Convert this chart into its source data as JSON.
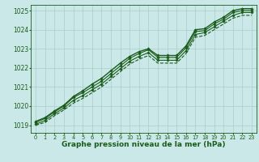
{
  "background_color": "#cbe8e8",
  "grid_color": "#aacccc",
  "line_color": "#1a5c1a",
  "marker_color": "#1a5c1a",
  "xlabel": "Graphe pression niveau de la mer (hPa)",
  "xlabel_fontsize": 6.5,
  "xlim": [
    -0.5,
    23.5
  ],
  "ylim": [
    1018.6,
    1025.3
  ],
  "yticks": [
    1019,
    1020,
    1021,
    1022,
    1023,
    1024,
    1025
  ],
  "xticks": [
    0,
    1,
    2,
    3,
    4,
    5,
    6,
    7,
    8,
    9,
    10,
    11,
    12,
    13,
    14,
    15,
    16,
    17,
    18,
    19,
    20,
    21,
    22,
    23
  ],
  "series": [
    [
      1019.2,
      1019.4,
      1019.75,
      1020.05,
      1020.5,
      1020.8,
      1021.15,
      1021.45,
      1021.85,
      1022.25,
      1022.6,
      1022.85,
      1023.0,
      1022.65,
      1022.65,
      1022.65,
      1023.15,
      1024.0,
      1024.05,
      1024.4,
      1024.65,
      1025.0,
      1025.1,
      1025.1
    ],
    [
      1019.15,
      1019.35,
      1019.7,
      1020.0,
      1020.45,
      1020.7,
      1021.0,
      1021.3,
      1021.7,
      1022.1,
      1022.5,
      1022.75,
      1022.95,
      1022.55,
      1022.55,
      1022.55,
      1023.05,
      1023.9,
      1023.95,
      1024.3,
      1024.55,
      1024.9,
      1025.0,
      1025.0
    ],
    [
      1019.05,
      1019.25,
      1019.6,
      1019.9,
      1020.3,
      1020.55,
      1020.85,
      1021.15,
      1021.55,
      1021.95,
      1022.35,
      1022.6,
      1022.8,
      1022.4,
      1022.4,
      1022.4,
      1022.9,
      1023.75,
      1023.85,
      1024.15,
      1024.45,
      1024.75,
      1024.9,
      1024.9
    ],
    [
      1019.0,
      1019.15,
      1019.5,
      1019.8,
      1020.15,
      1020.4,
      1020.7,
      1021.0,
      1021.4,
      1021.8,
      1022.2,
      1022.45,
      1022.65,
      1022.25,
      1022.25,
      1022.25,
      1022.75,
      1023.6,
      1023.7,
      1024.0,
      1024.3,
      1024.6,
      1024.75,
      1024.75
    ]
  ],
  "series_markers": [
    true,
    true,
    true,
    false
  ],
  "series_lw": [
    1.0,
    0.8,
    0.8,
    0.8
  ]
}
